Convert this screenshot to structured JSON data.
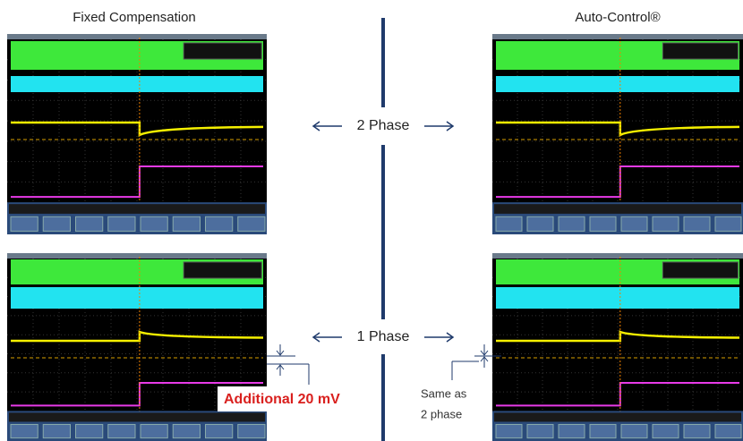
{
  "left_title": "Fixed Compensation",
  "right_title": "Auto-Control®",
  "top_label": "2 Phase",
  "bottom_label": "1 Phase",
  "left_note": "Additional 20 mV",
  "right_note": [
    "Same as",
    "2 phase"
  ]
}
